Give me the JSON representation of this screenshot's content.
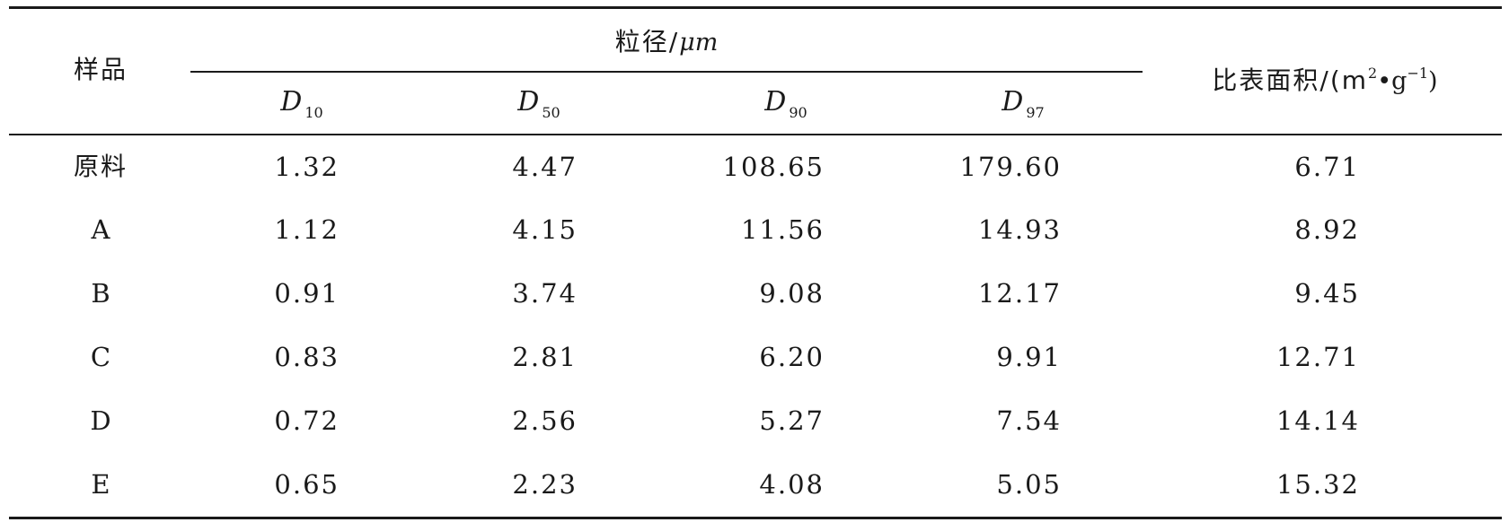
{
  "table": {
    "header": {
      "sample": "样品",
      "particle_size_group": "粒径/",
      "particle_size_unit": "μm",
      "surface_area_label": "比表面积/(m",
      "surface_area_sup1": "2",
      "surface_area_mid": "•g",
      "surface_area_sup2": "−1",
      "surface_area_end": ")",
      "d_symbol": "D",
      "d_subs": [
        "10",
        "50",
        "90",
        "97"
      ]
    },
    "rows": [
      {
        "sample": "原料",
        "d10": "1.32",
        "d50": "4.47",
        "d90": "108.65",
        "d97": "179.60",
        "ssa": "6.71"
      },
      {
        "sample": "A",
        "d10": "1.12",
        "d50": "4.15",
        "d90": "11.56",
        "d97": "14.93",
        "ssa": "8.92"
      },
      {
        "sample": "B",
        "d10": "0.91",
        "d50": "3.74",
        "d90": "9.08",
        "d97": "12.17",
        "ssa": "9.45"
      },
      {
        "sample": "C",
        "d10": "0.83",
        "d50": "2.81",
        "d90": "6.20",
        "d97": "9.91",
        "ssa": "12.71"
      },
      {
        "sample": "D",
        "d10": "0.72",
        "d50": "2.56",
        "d90": "5.27",
        "d97": "7.54",
        "ssa": "14.14"
      },
      {
        "sample": "E",
        "d10": "0.65",
        "d50": "2.23",
        "d90": "4.08",
        "d97": "5.05",
        "ssa": "15.32"
      }
    ]
  }
}
